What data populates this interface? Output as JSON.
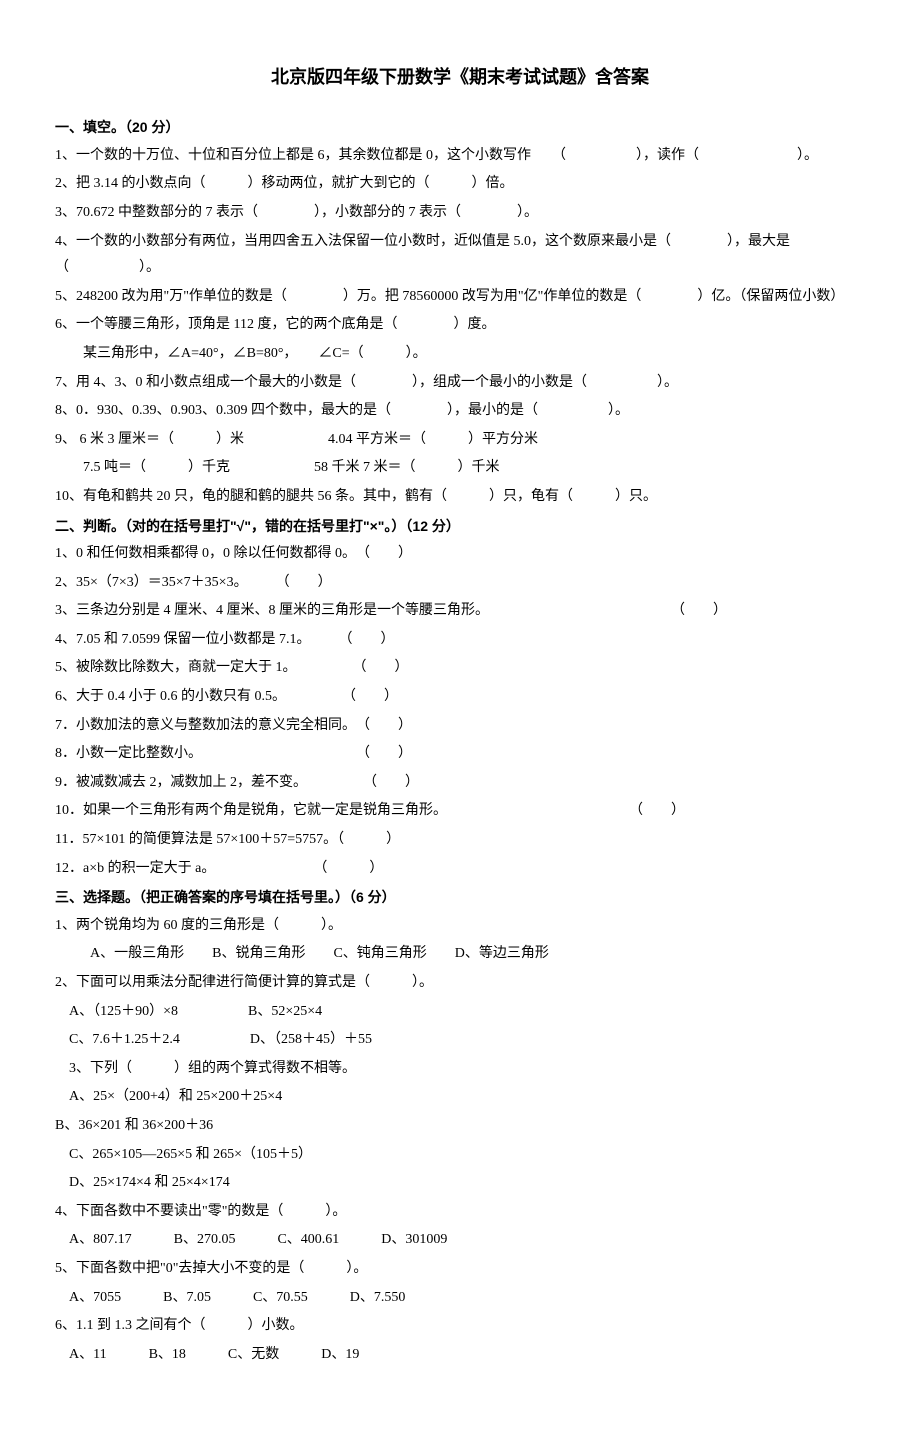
{
  "title": "北京版四年级下册数学《期末考试试题》含答案",
  "section1": {
    "header": "一、填空。（20 分）",
    "q1": "1、一个数的十万位、十位和百分位上都是 6，其余数位都是 0，这个小数写作　　（　　　　　），读作（　　　　　　　）。",
    "q2": "2、把 3.14 的小数点向（　　　）移动两位，就扩大到它的（　　　）倍。",
    "q3": "3、70.672 中整数部分的 7 表示（　　　　），小数部分的 7 表示（　　　　）。",
    "q4": "4、一个数的小数部分有两位，当用四舍五入法保留一位小数时，近似值是 5.0，这个数原来最小是（　　　　），最大是（　　　　　）。",
    "q5": "5、248200 改为用\"万\"作单位的数是（　　　　）万。把 78560000 改写为用\"亿\"作单位的数是（　　　　）亿。（保留两位小数）",
    "q6a": "6、一个等腰三角形，顶角是 112 度，它的两个底角是（　　　　）度。",
    "q6b": "某三角形中，∠A=40°，∠B=80°，　　∠C=（　　　）。",
    "q7": "7、用 4、3、0 和小数点组成一个最大的小数是（　　　　），组成一个最小的小数是（　　　　　）。",
    "q8": "8、0．930、0.39、0.903、0.309 四个数中，最大的是（　　　　），最小的是（　　　　　）。",
    "q9a": "9、 6 米 3 厘米＝（　　　）米　　　　　　4.04 平方米＝（　　　）平方分米",
    "q9b": "7.5 吨＝（　　　）千克　　　　　　58 千米 7 米＝（　　　）千米",
    "q10": "10、有龟和鹤共 20 只，龟的腿和鹤的腿共 56 条。其中，鹤有（　　　）只，龟有（　　　）只。"
  },
  "section2": {
    "header": "二、判断。（对的在括号里打\"√\"，错的在括号里打\"×\"。）（12 分）",
    "q1": "1、0 和任何数相乘都得 0，0 除以任何数都得 0。　（　　）",
    "q2": "2、35×（7×3）＝35×7＋35×3。　　　（　　）",
    "q3": "3、三条边分别是 4 厘米、4 厘米、8 厘米的三角形是一个等腰三角形。　　　　　　　　　　　　　　（　　）",
    "q4": "4、7.05 和 7.0599 保留一位小数都是 7.1。　　　（　　）",
    "q5": "5、被除数比除数大，商就一定大于 1。　　　　　（　　）",
    "q6": "6、大于 0.4 小于 0.6 的小数只有 0.5。　　　　　（　　）",
    "q7": "7．小数加法的意义与整数加法的意义完全相同。　（　　）",
    "q8": "8．小数一定比整数小。　　　　　　　　　　　　（　　）",
    "q9": "9．被减数减去 2，减数加上 2，差不变。　　　　　（　　）",
    "q10": "10．如果一个三角形有两个角是锐角，它就一定是锐角三角形。　　　　　　　　　　　　　　（　　）",
    "q11": "11．57×101 的简便算法是 57×100＋57=5757。（　　　）",
    "q12": "12．a×b 的积一定大于 a。　　　　　　　　（　　　）"
  },
  "section3": {
    "header": "三、选择题。（把正确答案的序号填在括号里。）（6 分）",
    "q1": "1、两个锐角均为 60 度的三角形是（　　　）。",
    "q1opt": "A、一般三角形　　B、锐角三角形　　C、钝角三角形　　D、等边三角形",
    "q2": "2、下面可以用乘法分配律进行简便计算的算式是（　　　）。",
    "q2opta": "A、（125＋90）×8　　　　　B、52×25×4",
    "q2optb": "C、7.6＋1.25＋2.4　　　　　D、（258＋45）＋55",
    "q3": "3、下列（　　　）组的两个算式得数不相等。",
    "q3opta": "A、25×（200+4）和 25×200＋25×4",
    "q3optb": "B、36×201 和 36×200＋36",
    "q3optc": "C、265×105—265×5 和 265×（105＋5）",
    "q3optd": "D、25×174×4 和 25×4×174",
    "q4": "4、下面各数中不要读出\"零\"的数是（　　　）。",
    "q4opt": "A、807.17　　　B、270.05　　　C、400.61　　　D、301009",
    "q5": "5、下面各数中把\"0\"去掉大小不变的是（　　　）。",
    "q5opt": "A、7055　　　B、7.05　　　C、70.55　　　D、7.550",
    "q6": "6、1.1 到 1.3 之间有个（　　　）小数。",
    "q6opt": "A、11　　　B、18　　　C、无数　　　D、19"
  }
}
